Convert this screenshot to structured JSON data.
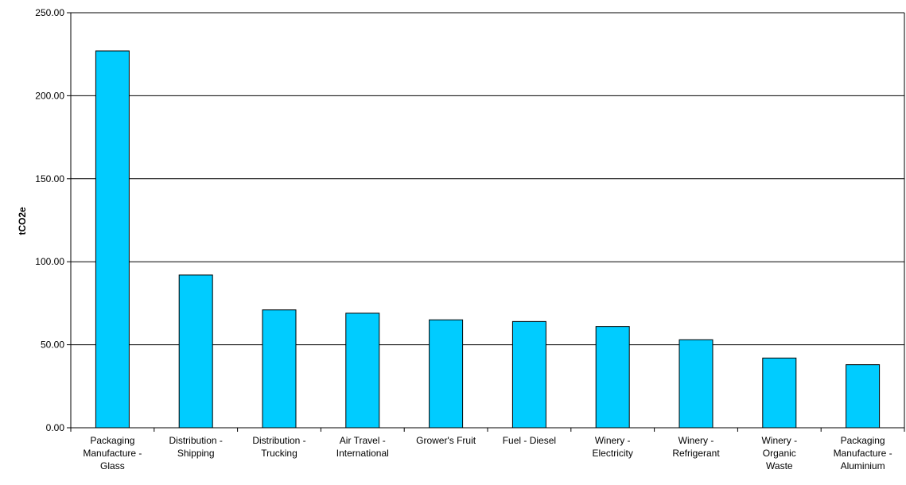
{
  "chart_data": {
    "type": "bar",
    "title": "",
    "xlabel": "",
    "ylabel": "tCO2e",
    "ylim": [
      0,
      250
    ],
    "yticks": [
      "0.00",
      "50.00",
      "100.00",
      "150.00",
      "200.00",
      "250.00"
    ],
    "grid": true,
    "legend": "none",
    "bar_color": "#00CCFF",
    "categories": [
      "Packaging Manufacture - Glass",
      "Distribution - Shipping",
      "Distribution - Trucking",
      "Air Travel - International",
      "Grower's Fruit",
      "Fuel - Diesel",
      "Winery - Electricity",
      "Winery - Refrigerant",
      "Winery - Organic Waste",
      "Packaging Manufacture - Aluminium"
    ],
    "category_lines": [
      [
        "Packaging",
        "Manufacture -",
        "Glass"
      ],
      [
        "Distribution -",
        "Shipping"
      ],
      [
        "Distribution -",
        "Trucking"
      ],
      [
        "Air Travel -",
        "International"
      ],
      [
        "Grower's Fruit"
      ],
      [
        "Fuel - Diesel"
      ],
      [
        "Winery -",
        "Electricity"
      ],
      [
        "Winery -",
        "Refrigerant"
      ],
      [
        "Winery -",
        "Organic",
        "Waste"
      ],
      [
        "Packaging",
        "Manufacture -",
        "Aluminium"
      ]
    ],
    "values": [
      227,
      92,
      71,
      69,
      65,
      64,
      61,
      53,
      42,
      38
    ]
  }
}
